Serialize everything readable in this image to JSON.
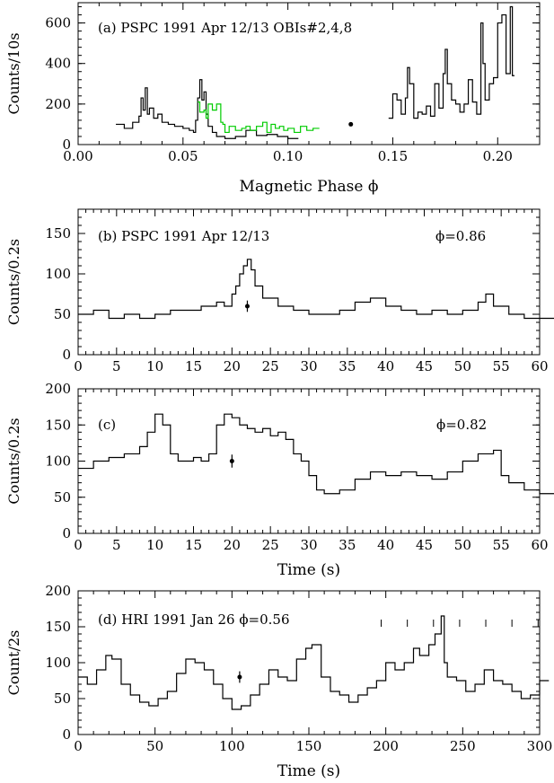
{
  "chart_data": [
    {
      "type": "line",
      "panel": "a",
      "annotation": "(a) PSPC 1991 Apr 12/13 OBIs#2,4,8",
      "xlabel": "Magnetic Phase ϕ",
      "ylabel": "Counts/10s",
      "xlim": [
        0.0,
        0.22
      ],
      "ylim": [
        0,
        700
      ],
      "xticks": [
        0.0,
        0.05,
        0.1,
        0.15,
        0.2
      ],
      "xtick_labels": [
        "0.00",
        "0.05",
        "0.10",
        "0.15",
        "0.20"
      ],
      "yticks": [
        0,
        200,
        400,
        600
      ],
      "ytick_labels": [
        "0",
        "200",
        "400",
        "600"
      ],
      "series": [
        {
          "color": "#000000",
          "x": [
            0.018,
            0.022,
            0.026,
            0.029,
            0.03,
            0.031,
            0.032,
            0.033,
            0.034,
            0.036,
            0.038,
            0.04,
            0.043,
            0.046,
            0.05,
            0.053,
            0.055,
            0.056,
            0.057,
            0.058,
            0.059,
            0.06,
            0.061,
            0.062,
            0.064,
            0.066,
            0.07,
            0.075,
            0.08,
            0.085,
            0.09,
            0.095,
            0.1
          ],
          "y": [
            100,
            80,
            110,
            140,
            230,
            170,
            280,
            150,
            180,
            130,
            150,
            110,
            100,
            90,
            80,
            70,
            60,
            120,
            230,
            320,
            220,
            260,
            150,
            90,
            60,
            40,
            30,
            40,
            70,
            45,
            50,
            40,
            30
          ]
        },
        {
          "color": "#000000",
          "x": [
            0.148,
            0.15,
            0.152,
            0.154,
            0.156,
            0.157,
            0.158,
            0.16,
            0.162,
            0.164,
            0.166,
            0.168,
            0.17,
            0.172,
            0.174,
            0.175,
            0.176,
            0.178,
            0.18,
            0.182,
            0.184,
            0.186,
            0.188,
            0.19,
            0.192,
            0.193,
            0.194,
            0.196,
            0.198,
            0.2,
            0.202,
            0.204,
            0.206,
            0.207
          ],
          "y": [
            130,
            250,
            220,
            150,
            230,
            380,
            300,
            130,
            160,
            150,
            190,
            140,
            300,
            180,
            350,
            470,
            300,
            220,
            200,
            160,
            200,
            320,
            210,
            150,
            600,
            400,
            220,
            300,
            330,
            600,
            640,
            350,
            680,
            340
          ]
        },
        {
          "color": "#00cc00",
          "x": [
            0.057,
            0.058,
            0.06,
            0.061,
            0.062,
            0.064,
            0.066,
            0.068,
            0.069,
            0.07,
            0.072,
            0.075,
            0.078,
            0.08,
            0.082,
            0.085,
            0.088,
            0.09,
            0.092,
            0.094,
            0.096,
            0.098,
            0.1,
            0.103,
            0.106,
            0.109,
            0.112
          ],
          "y": [
            210,
            160,
            170,
            130,
            200,
            170,
            200,
            110,
            100,
            60,
            90,
            70,
            80,
            90,
            70,
            90,
            110,
            60,
            100,
            80,
            90,
            70,
            80,
            60,
            90,
            70,
            80
          ]
        }
      ],
      "error_bar": {
        "x": 0.13,
        "y": 100,
        "err": 8
      }
    },
    {
      "type": "line",
      "panel": "b",
      "annotation": "(b) PSPC 1991 Apr 12/13",
      "phase_label": "ϕ=0.86",
      "xlabel": "",
      "ylabel": "Counts/0.2s",
      "xlim": [
        0,
        60
      ],
      "ylim": [
        0,
        180
      ],
      "xticks": [
        0,
        5,
        10,
        15,
        20,
        25,
        30,
        35,
        40,
        45,
        50,
        55,
        60
      ],
      "xtick_labels": [
        "0",
        "5",
        "10",
        "15",
        "20",
        "25",
        "30",
        "35",
        "40",
        "45",
        "50",
        "55",
        "60"
      ],
      "yticks": [
        0,
        50,
        100,
        150
      ],
      "ytick_labels": [
        "0",
        "50",
        "100",
        "150"
      ],
      "series": [
        {
          "color": "#000000",
          "x": [
            0,
            2,
            4,
            6,
            8,
            10,
            12,
            14,
            16,
            18,
            19,
            20,
            20.5,
            21,
            21.5,
            22,
            22.5,
            23,
            24,
            26,
            28,
            30,
            32,
            34,
            36,
            38,
            40,
            42,
            44,
            46,
            48,
            50,
            52,
            53,
            54,
            56,
            58,
            60
          ],
          "y": [
            50,
            55,
            45,
            50,
            45,
            50,
            55,
            55,
            60,
            65,
            60,
            75,
            85,
            100,
            110,
            118,
            105,
            85,
            70,
            60,
            55,
            50,
            50,
            55,
            65,
            70,
            60,
            55,
            50,
            55,
            50,
            55,
            65,
            75,
            60,
            50,
            45,
            45
          ]
        }
      ],
      "error_bar": {
        "x": 22,
        "y": 60,
        "err": 7
      }
    },
    {
      "type": "line",
      "panel": "c",
      "annotation": "(c)",
      "phase_label": "ϕ=0.82",
      "xlabel": "Time (s)",
      "ylabel": "Counts/0.2s",
      "xlim": [
        0,
        60
      ],
      "ylim": [
        0,
        200
      ],
      "xticks": [
        0,
        5,
        10,
        15,
        20,
        25,
        30,
        35,
        40,
        45,
        50,
        55,
        60
      ],
      "xtick_labels": [
        "0",
        "5",
        "10",
        "15",
        "20",
        "25",
        "30",
        "35",
        "40",
        "45",
        "50",
        "55",
        "60"
      ],
      "yticks": [
        0,
        50,
        100,
        150,
        200
      ],
      "ytick_labels": [
        "0",
        "50",
        "100",
        "150",
        "200"
      ],
      "series": [
        {
          "color": "#000000",
          "x": [
            0,
            2,
            4,
            6,
            8,
            9,
            10,
            11,
            12,
            13,
            14,
            15,
            16,
            17,
            18,
            19,
            20,
            21,
            22,
            23,
            24,
            25,
            26,
            27,
            28,
            29,
            30,
            31,
            32,
            34,
            36,
            38,
            40,
            42,
            44,
            46,
            48,
            50,
            52,
            54,
            55,
            56,
            58,
            60
          ],
          "y": [
            90,
            100,
            105,
            110,
            120,
            140,
            165,
            150,
            110,
            100,
            100,
            105,
            100,
            110,
            150,
            165,
            160,
            150,
            145,
            140,
            145,
            135,
            140,
            130,
            110,
            100,
            80,
            60,
            55,
            60,
            75,
            85,
            80,
            85,
            80,
            75,
            85,
            100,
            110,
            115,
            80,
            70,
            60,
            55
          ]
        }
      ],
      "error_bar": {
        "x": 20,
        "y": 100,
        "err": 9
      }
    },
    {
      "type": "line",
      "panel": "d",
      "annotation": "(d) HRI 1991 Jan 26 ϕ=0.56",
      "xlabel": "Time (s)",
      "ylabel": "Count/2s",
      "xlim": [
        0,
        300
      ],
      "ylim": [
        0,
        200
      ],
      "xticks": [
        0,
        50,
        100,
        150,
        200,
        250,
        300
      ],
      "xtick_labels": [
        "0",
        "50",
        "100",
        "150",
        "200",
        "250",
        "300"
      ],
      "yticks": [
        0,
        50,
        100,
        150,
        200
      ],
      "ytick_labels": [
        "0",
        "50",
        "100",
        "150",
        "200"
      ],
      "series": [
        {
          "color": "#000000",
          "x": [
            0,
            6,
            12,
            18,
            22,
            28,
            34,
            40,
            46,
            52,
            58,
            64,
            70,
            76,
            82,
            88,
            94,
            100,
            106,
            112,
            118,
            124,
            130,
            136,
            142,
            148,
            152,
            158,
            164,
            170,
            176,
            182,
            188,
            194,
            200,
            206,
            212,
            218,
            222,
            228,
            232,
            236,
            238,
            240,
            246,
            252,
            258,
            264,
            270,
            276,
            282,
            288,
            294,
            300
          ],
          "y": [
            80,
            70,
            90,
            110,
            105,
            70,
            55,
            45,
            40,
            50,
            60,
            85,
            105,
            100,
            90,
            70,
            50,
            35,
            40,
            55,
            70,
            90,
            80,
            75,
            105,
            120,
            125,
            80,
            60,
            55,
            45,
            55,
            65,
            75,
            100,
            90,
            100,
            120,
            110,
            125,
            140,
            165,
            100,
            80,
            75,
            60,
            70,
            90,
            75,
            70,
            60,
            50,
            55,
            75
          ]
        }
      ],
      "error_bar": {
        "x": 105,
        "y": 80,
        "err": 8
      },
      "marker_ticks": [
        197,
        214,
        231,
        248,
        265,
        282,
        299
      ]
    }
  ]
}
